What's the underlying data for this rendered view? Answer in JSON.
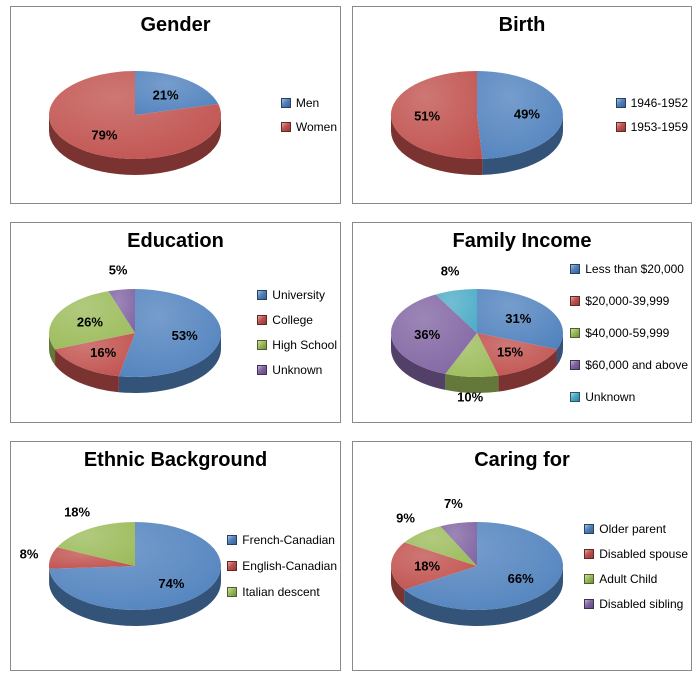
{
  "background_color": "#ffffff",
  "panel_border_color": "#8a8a8a",
  "text_color": "#000000",
  "chart_data": [
    {
      "type": "pie",
      "title": "Gender",
      "labels": [
        "Men",
        "Women"
      ],
      "values": [
        21,
        79
      ],
      "slice_labels": [
        "21%",
        "79%"
      ],
      "colors": [
        "#4F81BD",
        "#C0504D"
      ],
      "label_positions": [
        "inside",
        "inside"
      ],
      "legend_position": "right",
      "style": "3d-pie",
      "start_angle_deg": 0,
      "direction": "clockwise"
    },
    {
      "type": "pie",
      "title": "Birth",
      "labels": [
        "1946-1952",
        "1953-1959"
      ],
      "values": [
        49,
        51
      ],
      "slice_labels": [
        "49%",
        "51%"
      ],
      "colors": [
        "#4F81BD",
        "#C0504D"
      ],
      "label_positions": [
        "inside",
        "inside"
      ],
      "legend_position": "right",
      "style": "3d-pie",
      "start_angle_deg": 0,
      "direction": "clockwise"
    },
    {
      "type": "pie",
      "title": "Education",
      "labels": [
        "University",
        "College",
        "High School",
        "Unknown"
      ],
      "values": [
        53,
        16,
        26,
        5
      ],
      "slice_labels": [
        "53%",
        "16%",
        "26%",
        "5%"
      ],
      "colors": [
        "#4F81BD",
        "#C0504D",
        "#9BBB59",
        "#8064A2"
      ],
      "label_positions": [
        "inside",
        "inside",
        "inside",
        "outside"
      ],
      "legend_position": "right",
      "style": "3d-pie",
      "start_angle_deg": 0,
      "direction": "clockwise"
    },
    {
      "type": "pie",
      "title": "Family Income",
      "labels": [
        "Less than $20,000",
        "$20,000-39,999",
        "$40,000-59,999",
        "$60,000 and above",
        "Unknown"
      ],
      "values": [
        31,
        15,
        10,
        36,
        8
      ],
      "slice_labels": [
        "31%",
        "15%",
        "10%",
        "36%",
        "8%"
      ],
      "colors": [
        "#4F81BD",
        "#C0504D",
        "#9BBB59",
        "#8064A2",
        "#4BACC6"
      ],
      "label_positions": [
        "inside",
        "inside",
        "outside",
        "inside",
        "outside"
      ],
      "legend_position": "right",
      "style": "3d-pie",
      "start_angle_deg": 0,
      "direction": "clockwise"
    },
    {
      "type": "pie",
      "title": "Ethnic Background",
      "labels": [
        "French-Canadian",
        "English-Canadian",
        "Italian descent"
      ],
      "values": [
        74,
        8,
        18
      ],
      "slice_labels": [
        "74%",
        "8%",
        "18%"
      ],
      "colors": [
        "#4F81BD",
        "#C0504D",
        "#9BBB59"
      ],
      "label_positions": [
        "inside",
        "outside",
        "outside"
      ],
      "legend_position": "right",
      "style": "3d-pie",
      "start_angle_deg": 0,
      "direction": "clockwise"
    },
    {
      "type": "pie",
      "title": "Caring for",
      "labels": [
        "Older parent",
        "Disabled spouse",
        "Adult Child",
        "Disabled sibling"
      ],
      "values": [
        66,
        18,
        9,
        7
      ],
      "slice_labels": [
        "66%",
        "18%",
        "9%",
        "7%"
      ],
      "colors": [
        "#4F81BD",
        "#C0504D",
        "#9BBB59",
        "#8064A2"
      ],
      "label_positions": [
        "inside",
        "inside",
        "outside",
        "outside"
      ],
      "legend_position": "right",
      "style": "3d-pie",
      "start_angle_deg": 0,
      "direction": "clockwise"
    }
  ]
}
